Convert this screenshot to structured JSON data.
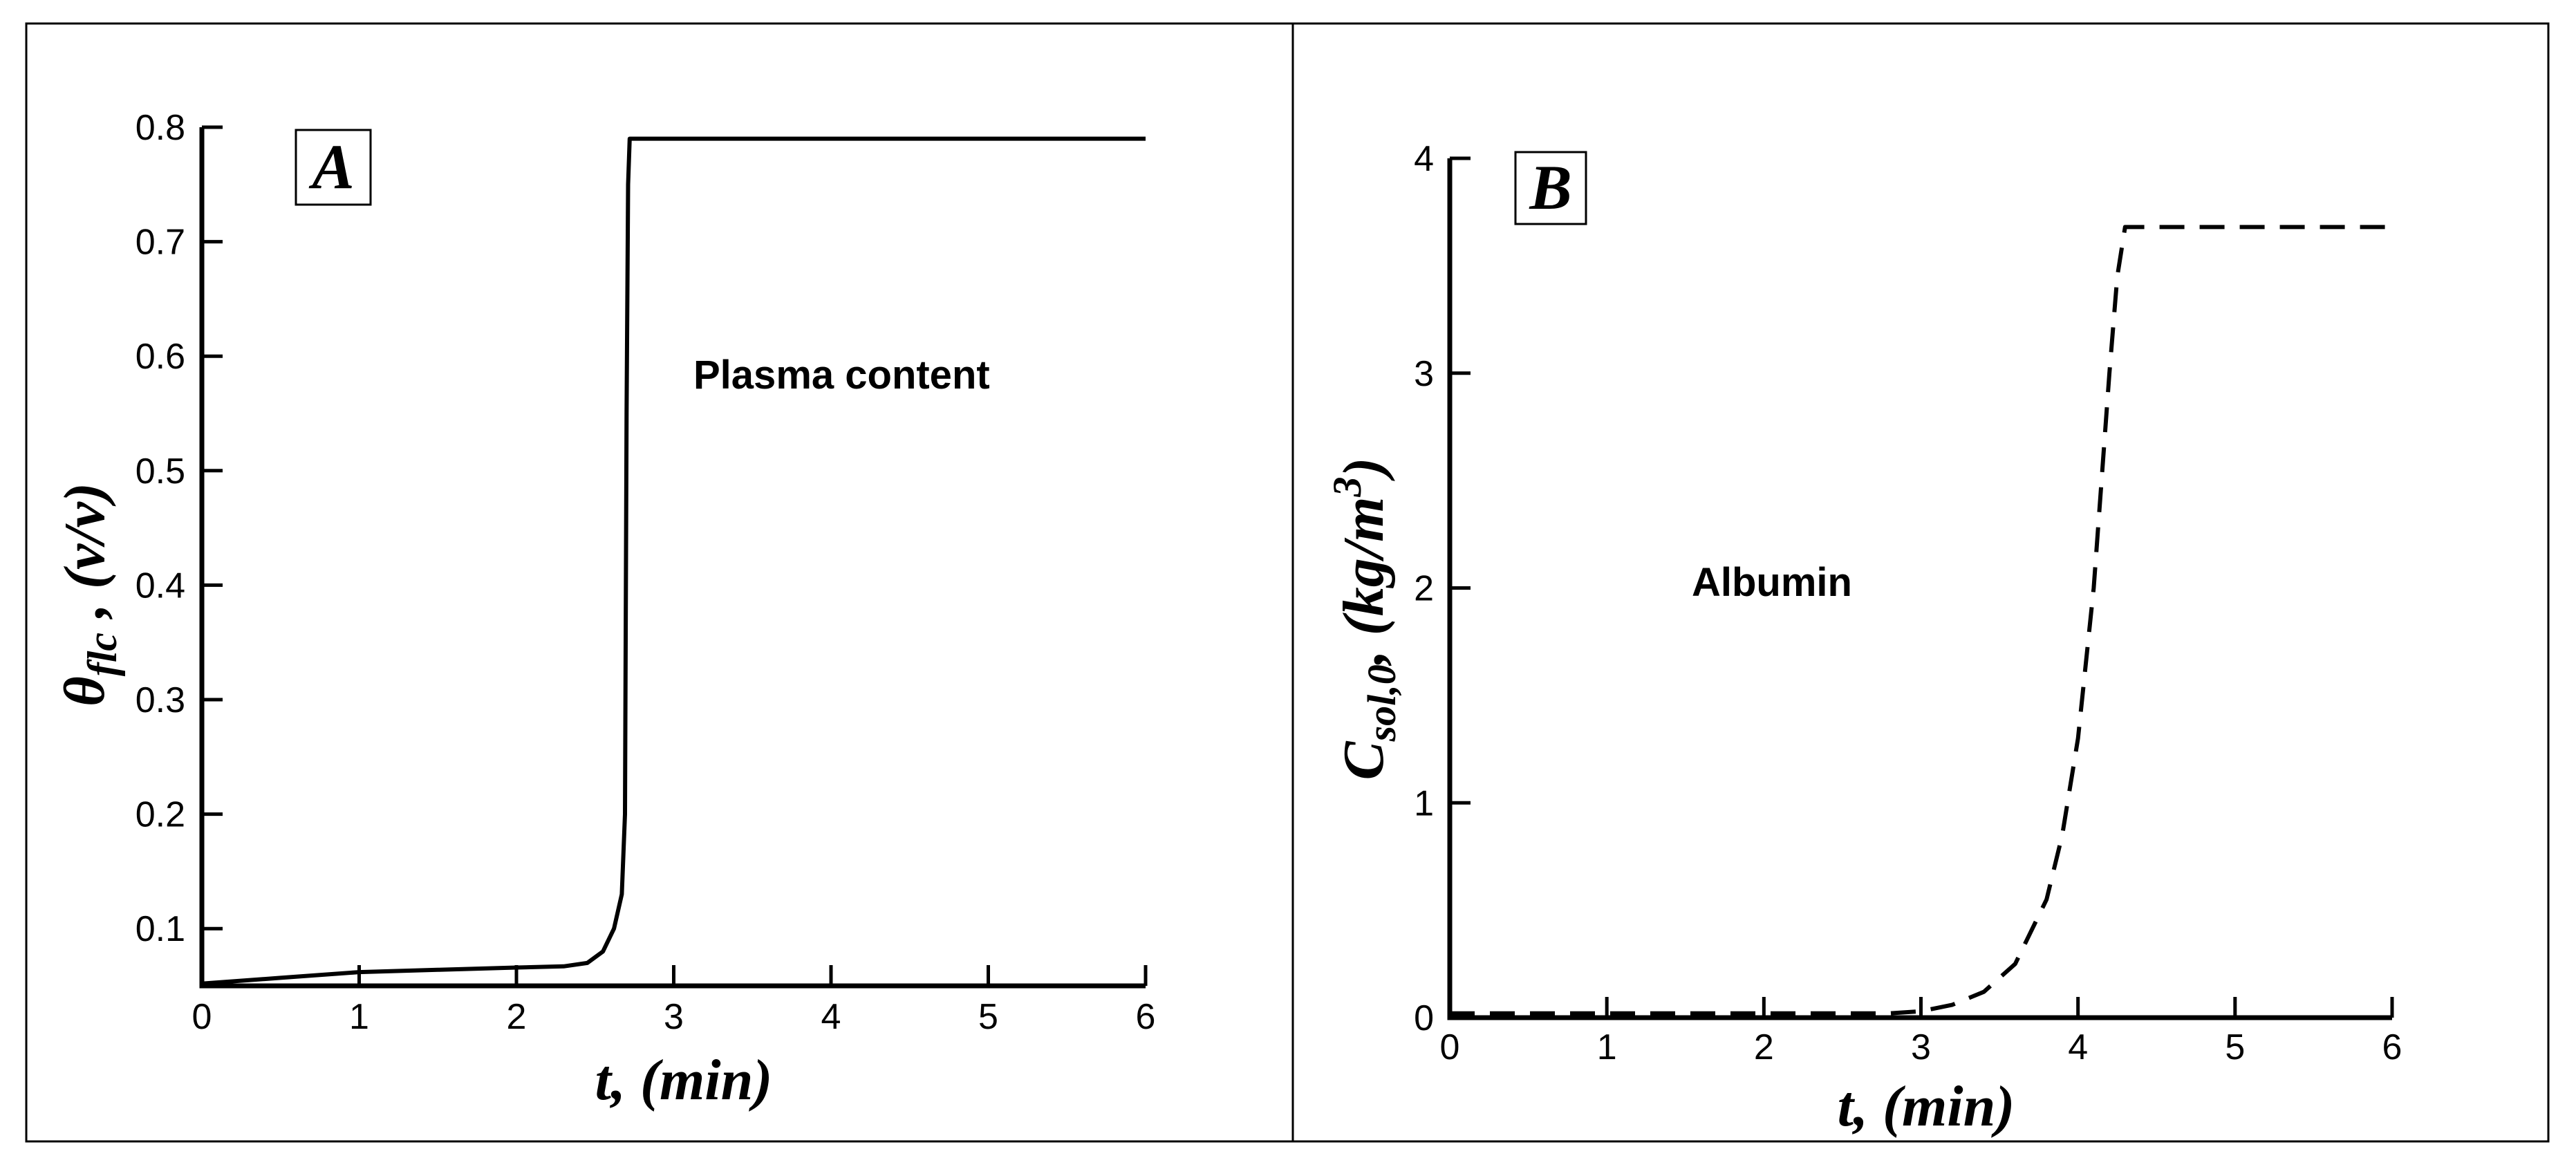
{
  "chart_data": [
    {
      "type": "line",
      "panel_label": "A",
      "annotation": "Plasma content",
      "xlabel": "t, (min)",
      "ylabel": "θflc , (v/v)",
      "xlim": [
        0,
        6
      ],
      "ylim": [
        0.05,
        0.8
      ],
      "x_ticks": [
        "0",
        "1",
        "2",
        "3",
        "4",
        "5",
        "6"
      ],
      "y_ticks": [
        "0.1",
        "0.2",
        "0.3",
        "0.4",
        "0.5",
        "0.6",
        "0.7",
        "0.8"
      ],
      "grid": false,
      "series": [
        {
          "style": "solid",
          "color": "#000000",
          "x": [
            0,
            0.5,
            1.0,
            1.5,
            2.0,
            2.3,
            2.45,
            2.55,
            2.62,
            2.67,
            2.69,
            2.7,
            2.71,
            2.72,
            2.73,
            3.0,
            4.0,
            5.0,
            6.0
          ],
          "y": [
            0.052,
            0.057,
            0.062,
            0.064,
            0.066,
            0.067,
            0.07,
            0.08,
            0.1,
            0.13,
            0.2,
            0.55,
            0.75,
            0.79,
            0.79,
            0.79,
            0.79,
            0.79,
            0.79
          ]
        }
      ]
    },
    {
      "type": "line",
      "panel_label": "B",
      "annotation": "Albumin",
      "xlabel": "t, (min)",
      "ylabel": "Csol,0, (kg/m3)",
      "xlim": [
        0,
        6
      ],
      "ylim": [
        0,
        4
      ],
      "x_ticks": [
        "0",
        "1",
        "2",
        "3",
        "4",
        "5",
        "6"
      ],
      "y_ticks": [
        "0",
        "1",
        "2",
        "3",
        "4"
      ],
      "grid": false,
      "series": [
        {
          "style": "dashed",
          "color": "#000000",
          "x": [
            0,
            1,
            2,
            2.8,
            3.0,
            3.2,
            3.4,
            3.6,
            3.8,
            3.9,
            4.0,
            4.1,
            4.2,
            4.25,
            4.3,
            5.0,
            6.0
          ],
          "y": [
            0.02,
            0.02,
            0.02,
            0.02,
            0.03,
            0.06,
            0.12,
            0.25,
            0.55,
            0.85,
            1.3,
            2.0,
            3.0,
            3.45,
            3.68,
            3.68,
            3.68
          ]
        }
      ]
    }
  ]
}
